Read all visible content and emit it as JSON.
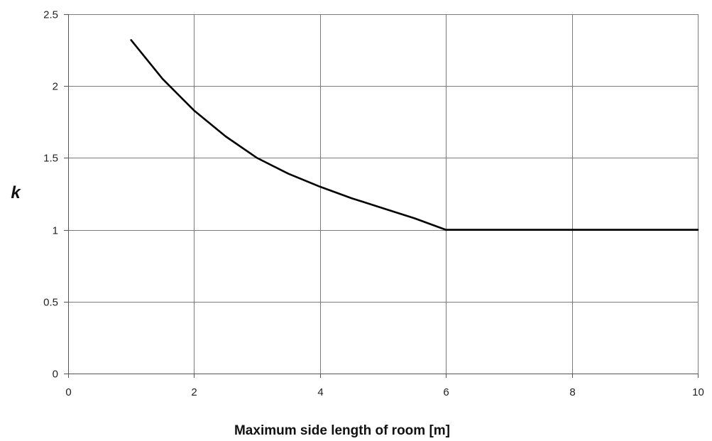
{
  "chart_data": {
    "type": "line",
    "title": "",
    "xlabel": "Maximum side length of room [m]",
    "ylabel": "k",
    "xlim": [
      0,
      10
    ],
    "ylim": [
      0,
      2.5
    ],
    "x_ticks": [
      0,
      2,
      4,
      6,
      8,
      10
    ],
    "y_ticks": [
      0,
      0.5,
      1,
      1.5,
      2,
      2.5
    ],
    "x_tick_labels": [
      "0",
      "2",
      "4",
      "6",
      "8",
      "10"
    ],
    "y_tick_labels": [
      "0",
      "0.5",
      "1",
      "1.5",
      "2",
      "2.5"
    ],
    "grid": true,
    "legend": "none",
    "line_color": "#000000",
    "series": [
      {
        "x": [
          1,
          1.5,
          2,
          2.5,
          3,
          3.5,
          4,
          4.5,
          5,
          5.5,
          6,
          7,
          8,
          9,
          10
        ],
        "y": [
          2.32,
          2.05,
          1.83,
          1.65,
          1.5,
          1.39,
          1.3,
          1.22,
          1.15,
          1.08,
          1.0,
          1.0,
          1.0,
          1.0,
          1.0
        ]
      }
    ]
  }
}
